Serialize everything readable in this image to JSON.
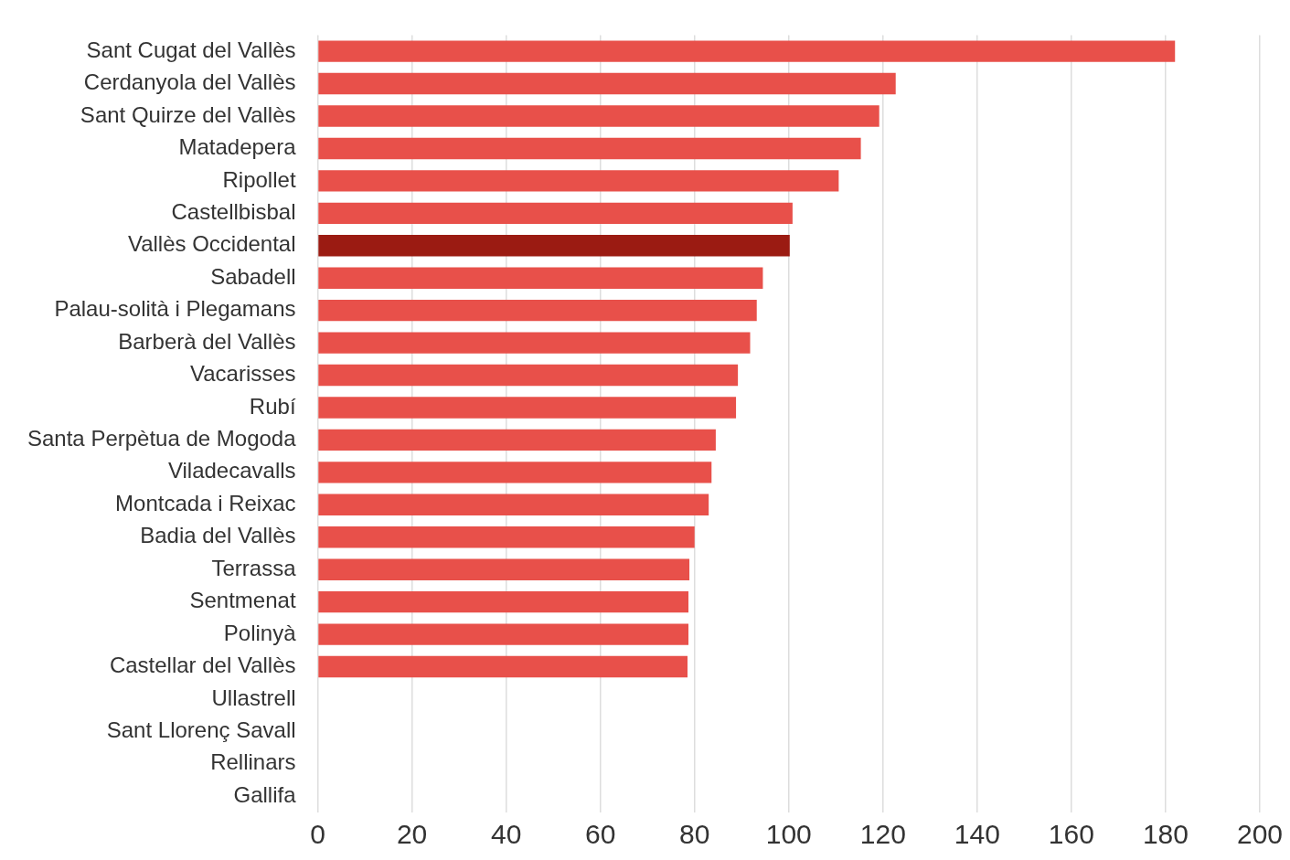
{
  "chart_data": {
    "type": "bar",
    "orientation": "horizontal",
    "categories": [
      "Sant Cugat del Vallès",
      "Cerdanyola del Vallès",
      "Sant Quirze del Vallès",
      "Matadepera",
      "Ripollet",
      "Castellbisbal",
      "Vallès Occidental",
      "Sabadell",
      "Palau-solità i Plegamans",
      "Barberà del Vallès",
      "Vacarisses",
      "Rubí",
      "Santa Perpètua de Mogoda",
      "Viladecavalls",
      "Montcada i Reixac",
      "Badia del Vallès",
      "Terrassa",
      "Sentmenat",
      "Polinyà",
      "Castellar del Vallès",
      "Ullastrell",
      "Sant Llorenç Savall",
      "Rellinars",
      "Gallifa"
    ],
    "values": [
      182,
      122.7,
      119.2,
      115.3,
      110.6,
      100.8,
      100.2,
      94.5,
      93.2,
      91.8,
      89.2,
      88.8,
      84.5,
      83.6,
      83.0,
      80.0,
      78.9,
      78.7,
      78.7,
      78.5,
      null,
      null,
      null,
      null
    ],
    "colors": [
      "#e8504a",
      "#e8504a",
      "#e8504a",
      "#e8504a",
      "#e8504a",
      "#e8504a",
      "#9b1b12",
      "#e8504a",
      "#e8504a",
      "#e8504a",
      "#e8504a",
      "#e8504a",
      "#e8504a",
      "#e8504a",
      "#e8504a",
      "#e8504a",
      "#e8504a",
      "#e8504a",
      "#e8504a",
      "#e8504a",
      "#e8504a",
      "#e8504a",
      "#e8504a",
      "#e8504a"
    ],
    "xlim": [
      0,
      200
    ],
    "xticks": [
      0,
      20,
      40,
      60,
      80,
      100,
      120,
      140,
      160,
      180,
      200
    ],
    "grid": "x"
  }
}
